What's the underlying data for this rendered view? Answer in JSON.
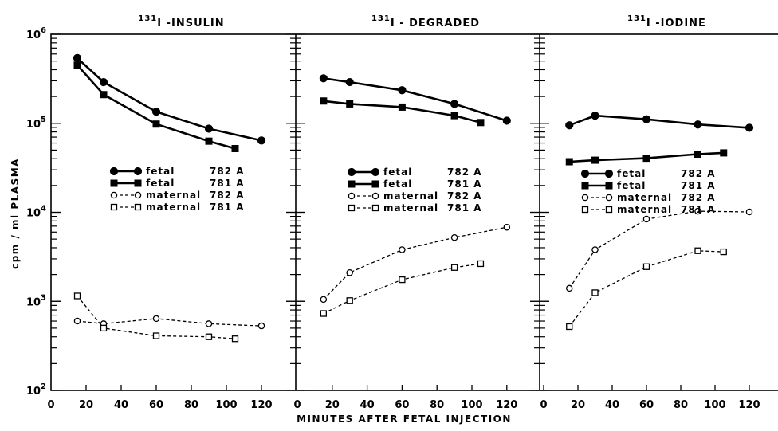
{
  "chart_data": {
    "type": "line",
    "xlabel": "MINUTES AFTER FETAL INJECTION",
    "ylabel": "cpm / ml PLASMA",
    "yscale": "log",
    "ylim": [
      100,
      1000000
    ],
    "xlim": [
      0,
      130
    ],
    "y_ticks": [
      {
        "value": 100,
        "base": "10",
        "exp": "2"
      },
      {
        "value": 1000,
        "base": "10",
        "exp": "3"
      },
      {
        "value": 10000,
        "base": "10",
        "exp": "4"
      },
      {
        "value": 100000,
        "base": "10",
        "exp": "5"
      },
      {
        "value": 1000000,
        "base": "10",
        "exp": "6"
      }
    ],
    "x_ticks": [
      [
        {
          "value": 0,
          "label": "0"
        },
        {
          "value": 20,
          "label": "20"
        },
        {
          "value": 40,
          "label": "40"
        },
        {
          "value": 60,
          "label": "60"
        },
        {
          "value": 80,
          "label": "80"
        },
        {
          "value": 100,
          "label": "100"
        },
        {
          "value": 120,
          "label": "120"
        }
      ],
      [
        {
          "value": 0,
          "label": "0"
        },
        {
          "value": 20,
          "label": "20"
        },
        {
          "value": 40,
          "label": "40"
        },
        {
          "value": 60,
          "label": "60"
        },
        {
          "value": 80,
          "label": "80"
        },
        {
          "value": 100,
          "label": "100"
        },
        {
          "value": 120,
          "label": "120"
        }
      ],
      [
        {
          "value": 0,
          "label": "0"
        },
        {
          "value": 20,
          "label": "20"
        },
        {
          "value": 40,
          "label": "40"
        },
        {
          "value": 60,
          "label": "60"
        },
        {
          "value": 80,
          "label": "80"
        },
        {
          "value": 100,
          "label": "100"
        },
        {
          "value": 120,
          "label": "120"
        }
      ]
    ],
    "panels": [
      {
        "title_sup": "131",
        "title": "I -INSULIN",
        "series": [
          {
            "name": "fetal 782 A",
            "label": "fetal",
            "animal": "782 A",
            "marker": "filled-circle",
            "line": "solid",
            "x": [
              15,
              30,
              60,
              90,
              120
            ],
            "y": [
              540000,
              290000,
              135000,
              87000,
              64000
            ]
          },
          {
            "name": "fetal 781 A",
            "label": "fetal",
            "animal": "781 A",
            "marker": "filled-square",
            "line": "solid",
            "x": [
              15,
              30,
              60,
              90,
              105
            ],
            "y": [
              450000,
              210000,
              98000,
              63000,
              52000
            ]
          },
          {
            "name": "maternal 782 A",
            "label": "maternal",
            "animal": "782 A",
            "marker": "open-circle",
            "line": "dashed",
            "x": [
              15,
              30,
              60,
              90,
              120
            ],
            "y": [
              600,
              560,
              640,
              560,
              530
            ]
          },
          {
            "name": "maternal 781 A",
            "label": "maternal",
            "animal": "781 A",
            "marker": "open-square",
            "line": "dashed",
            "x": [
              15,
              30,
              60,
              90,
              105
            ],
            "y": [
              1150,
              500,
              410,
              400,
              380
            ]
          }
        ]
      },
      {
        "title_sup": "131",
        "title": "I - DEGRADED",
        "series": [
          {
            "name": "fetal 782 A",
            "label": "fetal",
            "animal": "782 A",
            "marker": "filled-circle",
            "line": "solid",
            "x": [
              15,
              30,
              60,
              90,
              120
            ],
            "y": [
              320000,
              290000,
              235000,
              165000,
              107000
            ]
          },
          {
            "name": "fetal 781 A",
            "label": "fetal",
            "animal": "781 A",
            "marker": "filled-square",
            "line": "solid",
            "x": [
              15,
              30,
              60,
              90,
              105
            ],
            "y": [
              178000,
              165000,
              152000,
              122000,
              102000
            ]
          },
          {
            "name": "maternal 782 A",
            "label": "maternal",
            "animal": "782 A",
            "marker": "open-circle",
            "line": "dashed",
            "x": [
              15,
              30,
              60,
              90,
              120
            ],
            "y": [
              1050,
              2100,
              3800,
              5200,
              6800
            ]
          },
          {
            "name": "maternal 781 A",
            "label": "maternal",
            "animal": "781 A",
            "marker": "open-square",
            "line": "dashed",
            "x": [
              15,
              30,
              60,
              90,
              105
            ],
            "y": [
              730,
              1020,
              1750,
              2400,
              2650
            ]
          }
        ]
      },
      {
        "title_sup": "131",
        "title": "I -IODINE",
        "series": [
          {
            "name": "fetal 782 A",
            "label": "fetal",
            "animal": "782 A",
            "marker": "filled-circle",
            "line": "solid",
            "x": [
              15,
              30,
              60,
              90,
              120
            ],
            "y": [
              95000,
              122000,
              111000,
              97000,
              89000
            ]
          },
          {
            "name": "fetal 781 A",
            "label": "fetal",
            "animal": "781 A",
            "marker": "filled-square",
            "line": "solid",
            "x": [
              15,
              30,
              60,
              90,
              105
            ],
            "y": [
              37000,
              38500,
              40500,
              45000,
              46500
            ]
          },
          {
            "name": "maternal 782 A",
            "label": "maternal",
            "animal": "782 A",
            "marker": "open-circle",
            "line": "dashed",
            "x": [
              15,
              30,
              60,
              90,
              120
            ],
            "y": [
              1400,
              3800,
              8400,
              10300,
              10100
            ]
          },
          {
            "name": "maternal 781 A",
            "label": "maternal",
            "animal": "781 A",
            "marker": "open-square",
            "line": "dashed",
            "x": [
              15,
              30,
              60,
              90,
              105
            ],
            "y": [
              520,
              1250,
              2450,
              3700,
              3600
            ]
          }
        ]
      }
    ]
  }
}
